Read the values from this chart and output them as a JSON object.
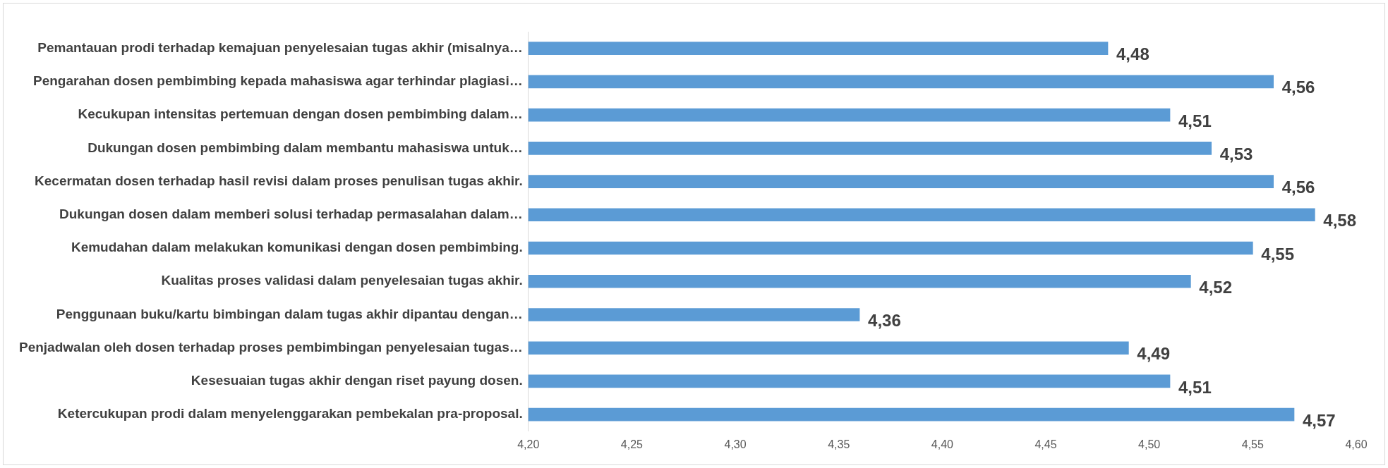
{
  "chart_data": {
    "type": "bar",
    "orientation": "horizontal",
    "categories": [
      "Pemantauan prodi terhadap kemajuan penyelesaian tugas akhir (misalnya…",
      "Pengarahan dosen pembimbing kepada mahasiswa agar terhindar plagiasi…",
      "Kecukupan intensitas pertemuan dengan dosen pembimbing dalam…",
      "Dukungan dosen pembimbing dalam membantu mahasiswa untuk…",
      "Kecermatan dosen terhadap hasil revisi dalam proses penulisan tugas akhir.",
      "Dukungan dosen dalam memberi solusi terhadap permasalahan dalam…",
      "Kemudahan dalam melakukan komunikasi dengan dosen pembimbing.",
      "Kualitas proses validasi dalam penyelesaian tugas akhir.",
      "Penggunaan buku/kartu bimbingan dalam tugas akhir dipantau dengan…",
      "Penjadwalan oleh dosen terhadap proses pembimbingan penyelesaian tugas…",
      "Kesesuaian tugas akhir dengan riset payung dosen.",
      "Ketercukupan prodi dalam menyelenggarakan pembekalan pra-proposal."
    ],
    "values": [
      4.48,
      4.56,
      4.51,
      4.53,
      4.56,
      4.58,
      4.55,
      4.52,
      4.36,
      4.49,
      4.51,
      4.57
    ],
    "value_labels": [
      "4,48",
      "4,56",
      "4,51",
      "4,53",
      "4,56",
      "4,58",
      "4,55",
      "4,52",
      "4,36",
      "4,49",
      "4,51",
      "4,57"
    ],
    "color": "#5b9bd5",
    "xlim": [
      4.2,
      4.6
    ],
    "xticks": [
      {
        "value": 4.2,
        "label": "4,20"
      },
      {
        "value": 4.25,
        "label": "4,25"
      },
      {
        "value": 4.3,
        "label": "4,30"
      },
      {
        "value": 4.35,
        "label": "4,35"
      },
      {
        "value": 4.4,
        "label": "4,40"
      },
      {
        "value": 4.45,
        "label": "4,45"
      },
      {
        "value": 4.5,
        "label": "4,50"
      },
      {
        "value": 4.55,
        "label": "4,55"
      },
      {
        "value": 4.6,
        "label": "4,60"
      }
    ],
    "grid": false,
    "legend": false
  }
}
